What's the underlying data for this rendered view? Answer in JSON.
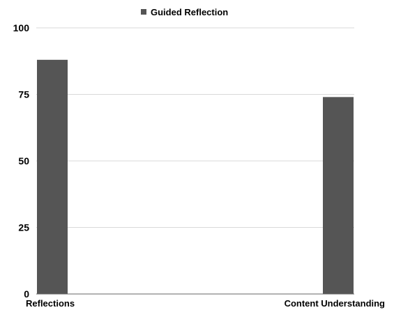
{
  "chart_data": {
    "type": "bar",
    "categories": [
      "Reflections",
      "Content Understanding"
    ],
    "series": [
      {
        "name": "Guided Reflection",
        "values": [
          88,
          74
        ],
        "color": "#555555"
      }
    ],
    "title": "",
    "xlabel": "",
    "ylabel": "",
    "ylim": [
      0,
      100
    ],
    "yticks": [
      0,
      25,
      50,
      75,
      100
    ],
    "grid": true,
    "legend": "top"
  }
}
